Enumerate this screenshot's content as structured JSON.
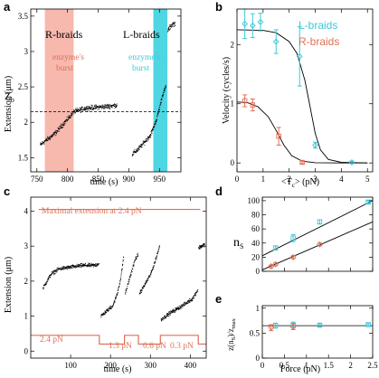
{
  "colors": {
    "cyan": "#3cc8d8",
    "red": "#e07055",
    "pink_band": "#f7b8ae",
    "cyan_band": "#4fd6e3"
  },
  "chart_data": [
    {
      "panel": "a",
      "type": "scatter",
      "xlabel": "time (s)",
      "ylabel": "Extension (μm)",
      "xlim": [
        740,
        985
      ],
      "ylim": [
        1.3,
        3.6
      ],
      "xticks": [
        750,
        800,
        850,
        900,
        950
      ],
      "yticks": [
        1.5,
        2,
        2.5,
        3,
        3.5
      ],
      "text": {
        "left": "R-braids",
        "right": "L-braids",
        "burst_left": "enzyme's burst",
        "burst_right": "enzyme's burst",
        "zb": "Z",
        "zb_sub": "b"
      },
      "zb_level": 2.15,
      "bands": [
        [
          763,
          810
        ],
        [
          940,
          963
        ]
      ],
      "segments": [
        {
          "x": [
            755,
            765,
            770,
            780,
            790,
            800,
            810,
            830,
            860,
            880
          ],
          "y": [
            1.68,
            1.75,
            1.78,
            1.85,
            1.95,
            2.05,
            2.15,
            2.2,
            2.22,
            2.24
          ]
        },
        {
          "x": [
            905,
            915,
            925,
            935,
            945,
            955,
            960
          ],
          "y": [
            1.55,
            1.62,
            1.72,
            1.82,
            2.05,
            2.4,
            2.5
          ]
        },
        {
          "x": [
            963,
            970,
            975
          ],
          "y": [
            3.3,
            3.38,
            3.4
          ]
        }
      ]
    },
    {
      "panel": "b",
      "type": "scatter",
      "xlabel": "<T",
      "xlabel_sub": "c",
      "xlabel_tail": "> (pN)",
      "ylabel": "Velocity (cycles/s)",
      "xlim": [
        0,
        5.2
      ],
      "ylim": [
        -0.15,
        2.6
      ],
      "xticks": [
        0,
        1,
        2,
        3,
        4,
        5
      ],
      "yticks": [
        0,
        1,
        2
      ],
      "legend": [
        "L-braids",
        "R-braids"
      ],
      "series": [
        {
          "name": "L-braids",
          "x": [
            0.3,
            0.6,
            0.9,
            1.5,
            2.4,
            3.0,
            4.4
          ],
          "y": [
            2.35,
            2.32,
            2.38,
            2.05,
            1.8,
            0.3,
            0.01
          ],
          "err": [
            0.25,
            0.2,
            0.15,
            0.2,
            0.5,
            0.05,
            0.02
          ]
        },
        {
          "name": "R-braids",
          "x": [
            0.3,
            0.6,
            1.6,
            2.5
          ],
          "y": [
            1.05,
            0.98,
            0.45,
            0.01
          ],
          "err": [
            0.1,
            0.1,
            0.15,
            0.02
          ]
        }
      ],
      "fits": [
        {
          "x": [
            0,
            1,
            1.5,
            2,
            2.3,
            2.6,
            2.8,
            3.0,
            3.2,
            3.5,
            4,
            5
          ],
          "y": [
            2.25,
            2.24,
            2.2,
            2.05,
            1.85,
            1.4,
            0.95,
            0.5,
            0.22,
            0.06,
            0.01,
            0
          ]
        },
        {
          "x": [
            0,
            0.4,
            0.8,
            1.2,
            1.5,
            1.8,
            2.1,
            2.5,
            3,
            4,
            5
          ],
          "y": [
            1.03,
            1.02,
            0.95,
            0.78,
            0.55,
            0.3,
            0.12,
            0.03,
            0.005,
            0,
            0
          ]
        }
      ]
    },
    {
      "panel": "c",
      "type": "scatter",
      "xlabel": "time (s)",
      "ylabel": "Extension (μm)",
      "xlim": [
        0,
        440
      ],
      "ylim": [
        -0.2,
        4.4
      ],
      "xticks": [
        100,
        200,
        300,
        400
      ],
      "yticks": [
        0,
        1,
        2,
        3,
        4
      ],
      "text": {
        "max_ext": "Maximal extension at 2.4 pN",
        "f1": "2.4 pN",
        "f2": "1.3 pN",
        "f3": "0.6 pN",
        "f4": "0.3 pN"
      },
      "max_level": 4.05,
      "force_trace": {
        "x": [
          0,
          172,
          172,
          235,
          235,
          270,
          270,
          325,
          325,
          420,
          420,
          440
        ],
        "y": [
          0.45,
          0.45,
          0.2,
          0.2,
          0.45,
          0.45,
          0.2,
          0.2,
          0.45,
          0.45,
          0.2,
          0.2
        ]
      },
      "segments": [
        {
          "x": [
            30,
            50,
            70,
            100,
            130,
            160,
            170
          ],
          "y": [
            1.8,
            2.2,
            2.35,
            2.4,
            2.45,
            2.45,
            2.5
          ]
        },
        {
          "x": [
            175,
            190,
            205,
            215,
            225,
            232
          ],
          "y": [
            1.0,
            1.15,
            1.3,
            1.6,
            2.1,
            2.7
          ]
        },
        {
          "x": [
            236,
            250,
            262,
            268
          ],
          "y": [
            1.65,
            2.2,
            2.65,
            2.75
          ]
        },
        {
          "x": [
            272,
            285,
            300,
            312,
            322
          ],
          "y": [
            1.65,
            1.9,
            2.2,
            2.6,
            3.0
          ]
        },
        {
          "x": [
            326,
            350,
            380,
            405,
            418
          ],
          "y": [
            0.9,
            1.1,
            1.3,
            1.5,
            1.75
          ]
        },
        {
          "x": [
            420,
            428,
            435
          ],
          "y": [
            2.95,
            3.0,
            3.05
          ]
        }
      ]
    },
    {
      "panel": "d",
      "type": "scatter",
      "ylabel": "n",
      "ylabel_sub": "S",
      "xlim": [
        0,
        2.5
      ],
      "ylim": [
        0,
        105
      ],
      "yticks": [
        0,
        20,
        40,
        60,
        80,
        100
      ],
      "series": [
        {
          "name": "cyan",
          "x": [
            0.3,
            0.7,
            1.3,
            2.4
          ],
          "y": [
            33,
            47,
            70,
            98
          ],
          "err": [
            3,
            5,
            3,
            2
          ]
        },
        {
          "name": "red",
          "x": [
            0.2,
            0.3,
            0.7,
            1.3
          ],
          "y": [
            7,
            10,
            20,
            38
          ],
          "err": [
            2,
            2,
            2,
            2
          ]
        }
      ],
      "fits": [
        {
          "x": [
            0,
            2.5
          ],
          "y": [
            22,
            100
          ]
        },
        {
          "x": [
            0,
            2.5
          ],
          "y": [
            2,
            70
          ]
        }
      ]
    },
    {
      "panel": "e",
      "type": "scatter",
      "xlabel": "Force (pN)",
      "ylabel_parts": [
        "z(n",
        "S",
        ")/z",
        "max"
      ],
      "xlim": [
        0,
        2.5
      ],
      "ylim": [
        0,
        1.05
      ],
      "xticks": [
        0,
        0.5,
        1,
        1.5,
        2,
        2.5
      ],
      "yticks": [
        0,
        0.5,
        1
      ],
      "fit_level": 0.65,
      "series": [
        {
          "name": "cyan",
          "x": [
            0.3,
            0.7,
            1.3,
            2.4
          ],
          "y": [
            0.65,
            0.66,
            0.66,
            0.67
          ],
          "err": [
            0.05,
            0.06,
            0.03,
            0.02
          ]
        },
        {
          "name": "red",
          "x": [
            0.2,
            0.7
          ],
          "y": [
            0.61,
            0.63
          ],
          "err": [
            0.06,
            0.06
          ]
        }
      ]
    }
  ],
  "panel_labels": [
    "a",
    "b",
    "c",
    "d",
    "e"
  ]
}
